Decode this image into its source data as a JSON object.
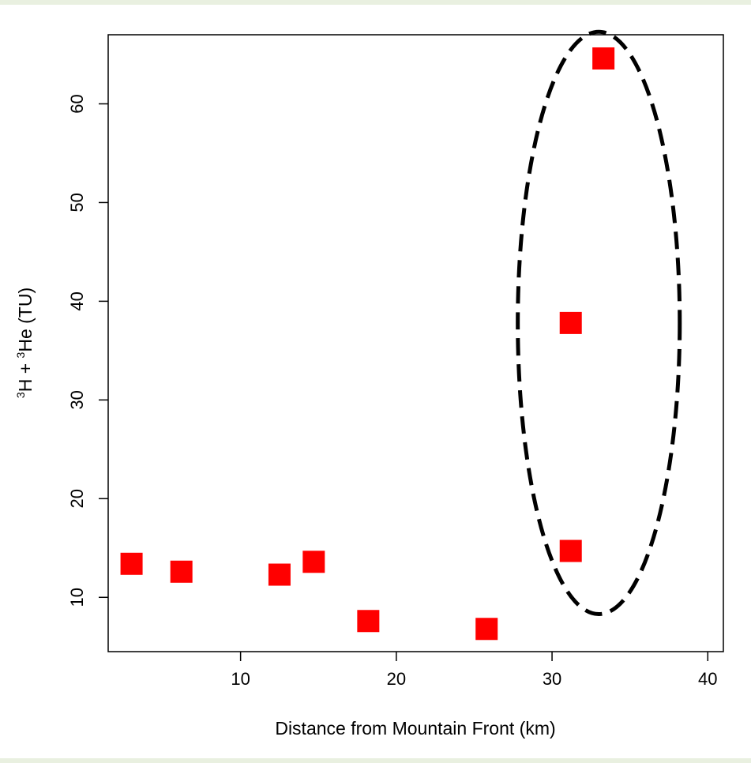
{
  "chart_data": {
    "type": "scatter",
    "xlabel": "Distance from Mountain Front (km)",
    "ylabel_parts": {
      "sup1": "3",
      "part1": "H + ",
      "sup2": "3",
      "part2": "He (TU)"
    },
    "xlim": [
      1.5,
      41
    ],
    "ylim": [
      4.5,
      67
    ],
    "xticks": [
      10,
      20,
      30,
      40
    ],
    "yticks": [
      10,
      20,
      30,
      40,
      50,
      60
    ],
    "grid": false,
    "legend": "none",
    "marker": "filled-square",
    "marker_color": "#ff0000",
    "points": [
      {
        "x": 3.0,
        "y": 13.4
      },
      {
        "x": 6.2,
        "y": 12.6
      },
      {
        "x": 12.5,
        "y": 12.3
      },
      {
        "x": 14.7,
        "y": 13.6
      },
      {
        "x": 18.2,
        "y": 7.6
      },
      {
        "x": 25.8,
        "y": 6.8
      },
      {
        "x": 31.2,
        "y": 37.8
      },
      {
        "x": 31.2,
        "y": 14.7
      },
      {
        "x": 33.3,
        "y": 64.6
      }
    ],
    "annotation": {
      "type": "dashed-ellipse",
      "center": {
        "x": 33.0,
        "y": 37.8
      },
      "rx": 5.2,
      "ry": 29.5
    }
  }
}
